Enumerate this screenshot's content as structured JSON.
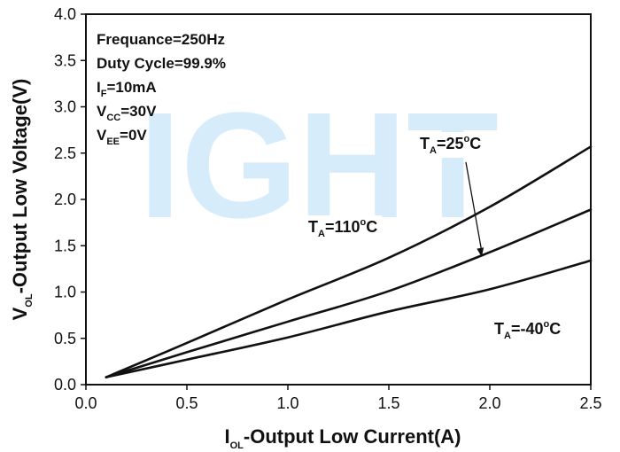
{
  "chart_data": {
    "type": "line",
    "x_axis": {
      "label_main": "I",
      "label_sub": "OL",
      "label_rest": "-Output Low Current(A)",
      "lim": [
        0.0,
        2.5
      ],
      "ticks": [
        "0.0",
        "0.5",
        "1.0",
        "1.5",
        "2.0",
        "2.5"
      ]
    },
    "y_axis": {
      "label_main": "V",
      "label_sub": "OL",
      "label_rest": "-Output Low Voltage(V)",
      "lim": [
        0.0,
        4.0
      ],
      "ticks": [
        "0.0",
        "0.5",
        "1.0",
        "1.5",
        "2.0",
        "2.5",
        "3.0",
        "3.5",
        "4.0"
      ]
    },
    "conditions": [
      {
        "main": "Frequance=250Hz",
        "sub": "",
        "rest": ""
      },
      {
        "main": "Duty Cycle=99.9%",
        "sub": "",
        "rest": ""
      },
      {
        "main": "I",
        "sub": "F",
        "rest": "=10mA"
      },
      {
        "main": "V",
        "sub": "CC",
        "rest": "=30V"
      },
      {
        "main": "V",
        "sub": "EE",
        "rest": "=0V"
      }
    ],
    "series": [
      {
        "main": "T",
        "sub": "A",
        "rest": "=110",
        "sup": "o",
        "unit": "C",
        "x": [
          0.1,
          0.5,
          1.0,
          1.5,
          2.0,
          2.5
        ],
        "y": [
          0.08,
          0.45,
          0.92,
          1.37,
          1.92,
          2.57
        ]
      },
      {
        "main": "T",
        "sub": "A",
        "rest": "=25",
        "sup": "o",
        "unit": "C",
        "x": [
          0.1,
          0.5,
          1.0,
          1.5,
          2.0,
          2.5
        ],
        "y": [
          0.08,
          0.35,
          0.68,
          1.01,
          1.43,
          1.89
        ]
      },
      {
        "main": "T",
        "sub": "A",
        "rest": "=-40",
        "sup": "o",
        "unit": "C",
        "x": [
          0.1,
          0.5,
          1.0,
          1.5,
          2.0,
          2.5
        ],
        "y": [
          0.08,
          0.27,
          0.51,
          0.79,
          1.03,
          1.34
        ]
      }
    ],
    "watermark": "IGHT",
    "grid": false
  }
}
